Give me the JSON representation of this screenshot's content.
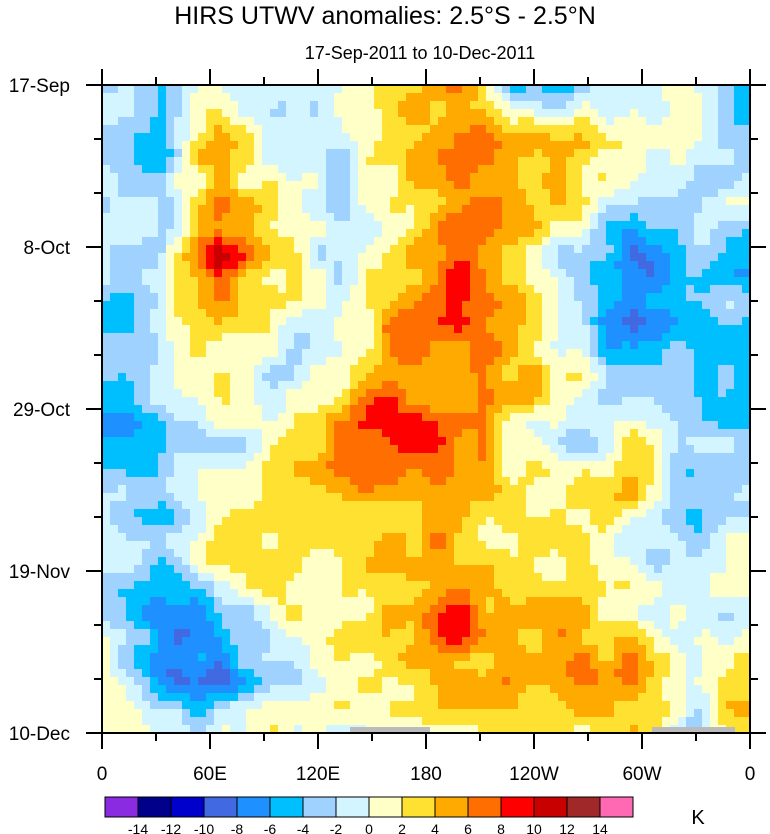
{
  "chart_data": {
    "type": "heatmap",
    "title": "HIRS UTWV anomalies: 2.5°S - 2.5°N",
    "subtitle": "17-Sep-2011 to 10-Dec-2011",
    "xlabel": "",
    "ylabel": "",
    "x_tick_labels": [
      "0",
      "60E",
      "120E",
      "180",
      "120W",
      "60W",
      "0"
    ],
    "y_tick_labels": [
      "17-Sep",
      "8-Oct",
      "29-Oct",
      "19-Nov",
      "10-Dec"
    ],
    "x_range_deg_east": [
      0,
      360
    ],
    "y_range": [
      "17-Sep-2011",
      "10-Dec-2011"
    ],
    "colorbar": {
      "unit": "K",
      "levels": [
        -14,
        -12,
        -10,
        -8,
        -6,
        -4,
        -2,
        0,
        2,
        4,
        6,
        8,
        10,
        12,
        14
      ],
      "colors": [
        "#8a2be2",
        "#00008b",
        "#0000cd",
        "#4169e1",
        "#1e90ff",
        "#00bfff",
        "#a0d2ff",
        "#d2f5ff",
        "#ffffc8",
        "#ffe132",
        "#ffaa00",
        "#ff6e00",
        "#ff0000",
        "#c80000",
        "#a02828",
        "#ff69b4"
      ],
      "tick_labels": [
        "-14",
        "-12",
        "-10",
        "-8",
        "-6",
        "-4",
        "-2",
        "0",
        "2",
        "4",
        "6",
        "8",
        "10",
        "12",
        "14"
      ]
    },
    "grid_note_rows": "approximate weekly rows from 17-Sep (top) to 10-Dec (bottom), columns every 30° longitude from 0 eastward",
    "values": [
      [
        -2,
        -3,
        0,
        -2,
        -1,
        3,
        7,
        -4,
        -6,
        0,
        -1,
        -6
      ],
      [
        -2,
        -4,
        6,
        -1,
        -2,
        2,
        5,
        6,
        6,
        2,
        -1,
        -3
      ],
      [
        -1,
        -3,
        5,
        0,
        -2,
        1,
        6,
        5,
        3,
        -3,
        -1,
        -2
      ],
      [
        -3,
        -2,
        10,
        2,
        -2,
        2,
        10,
        5,
        -3,
        -8,
        -3,
        -4
      ],
      [
        -4,
        -1,
        3,
        0,
        -1,
        6,
        8,
        4,
        -2,
        -10,
        -4,
        -4
      ],
      [
        -6,
        -2,
        1,
        -1,
        2,
        6,
        5,
        4,
        3,
        -4,
        -3,
        -6
      ],
      [
        -5,
        -4,
        -1,
        0,
        7,
        8,
        7,
        2,
        -3,
        2,
        -2,
        -2
      ],
      [
        -2,
        -4,
        0,
        3,
        4,
        5,
        6,
        2,
        3,
        3,
        -3,
        -2
      ],
      [
        -1,
        -3,
        3,
        3,
        1,
        3,
        5,
        2,
        2,
        -2,
        -3,
        1
      ],
      [
        -3,
        -6,
        -5,
        2,
        2,
        4,
        9,
        3,
        4,
        2,
        -2,
        -1
      ],
      [
        2,
        -6,
        -8,
        -2,
        2,
        3,
        4,
        5,
        7,
        6,
        -2,
        3
      ],
      [
        0,
        -2,
        -1,
        2,
        0,
        2,
        2,
        3,
        2,
        4,
        -1,
        5
      ]
    ],
    "grid": false,
    "legend_placement": "bottom"
  }
}
